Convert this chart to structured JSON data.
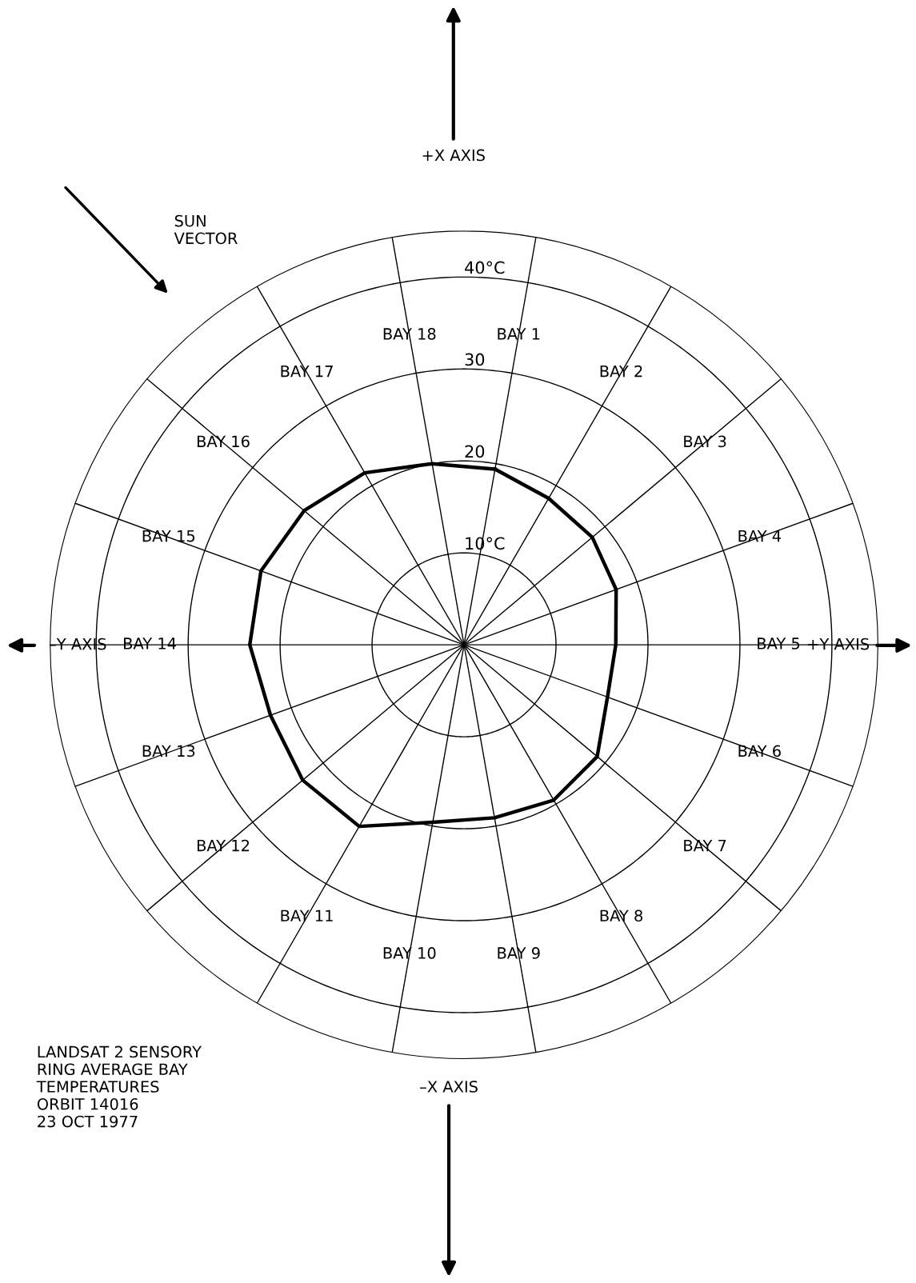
{
  "chart_data": {
    "type": "radar",
    "title": "LANDSAT 2 SENSORY\nRING AVERAGE BAY\nTEMPERATURES\nORBIT 14016\n23 OCT 1977",
    "categories": [
      "BAY 1",
      "BAY 2",
      "BAY 3",
      "BAY 4",
      "BAY 5",
      "BAY 6",
      "BAY 7",
      "BAY 8",
      "BAY 9",
      "BAY 10",
      "BAY 11",
      "BAY 12",
      "BAY 13",
      "BAY 14",
      "BAY 15",
      "BAY 16",
      "BAY 17",
      "BAY 18"
    ],
    "series": [
      {
        "color": "#000000",
        "values": [
          19.4,
          18.4,
          18.2,
          17.6,
          16.5,
          16.6,
          18.9,
          19.5,
          19.1,
          19.6,
          22.8,
          22.9,
          22.4,
          23.3,
          23.5,
          22.7,
          21.6,
          20.0
        ]
      }
    ],
    "ylim": [
      0,
      45
    ],
    "yticks": [
      {
        "value": 10,
        "label": "10°C"
      },
      20,
      30,
      {
        "value": 40,
        "label": "40°C"
      }
    ],
    "grid": true,
    "marker": "none",
    "line_style": "solid",
    "annotations": [
      "SUN\nVECTOR",
      "+X AXIS",
      "–Y AXIS",
      "+Y AXIS",
      "–X AXIS"
    ]
  }
}
